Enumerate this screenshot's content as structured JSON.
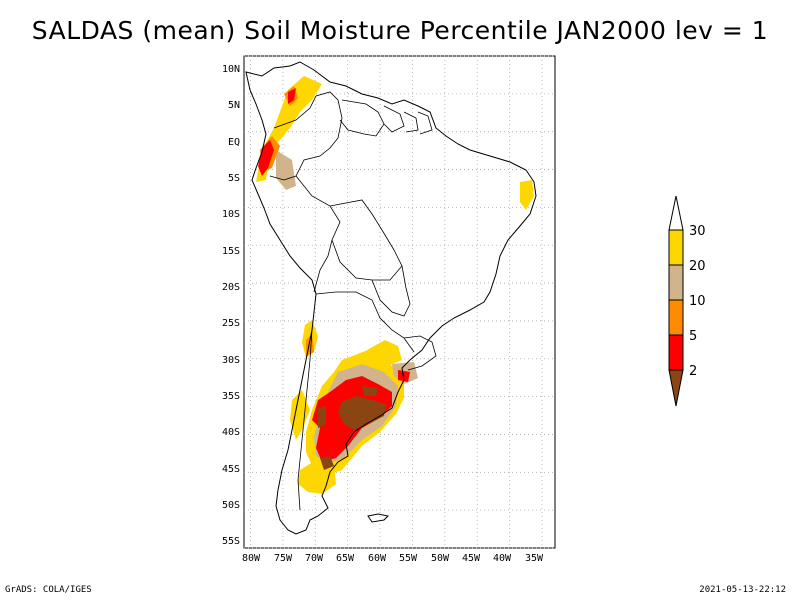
{
  "title": "SALDAS (mean) Soil Moisture Percentile JAN2000 lev = 1",
  "map": {
    "lat_labels": [
      "10N",
      "5N",
      "EQ",
      "5S",
      "10S",
      "15S",
      "20S",
      "25S",
      "30S",
      "35S",
      "40S",
      "45S",
      "50S",
      "55S"
    ],
    "lon_labels": [
      "80W",
      "75W",
      "70W",
      "65W",
      "60W",
      "55W",
      "50W",
      "45W",
      "40W",
      "35W"
    ],
    "lat_range": [
      10,
      -55
    ],
    "lon_range": [
      -81,
      -33
    ],
    "grid": "dotted"
  },
  "legend": {
    "levels": [
      "2",
      "5",
      "10",
      "20",
      "30"
    ],
    "colors": [
      "#8B4513",
      "#FF0000",
      "#FF8C00",
      "#D2B48C",
      "#FFD700",
      "#FFFFFF"
    ]
  },
  "footer": {
    "left": "GrADS: COLA/IGES",
    "right": "2021-05-13-22:12"
  }
}
